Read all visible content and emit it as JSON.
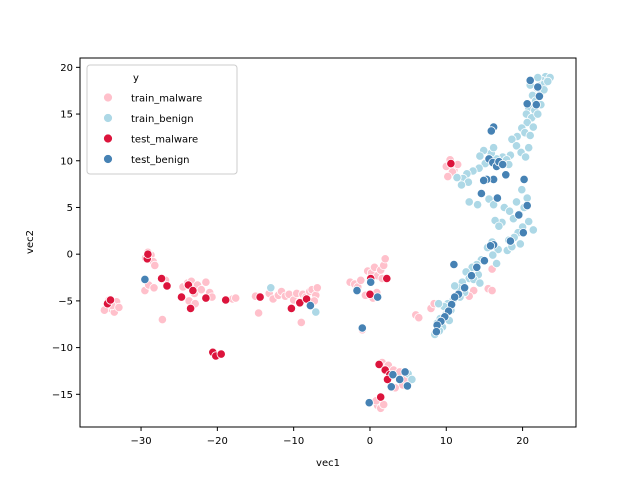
{
  "chart_data": {
    "type": "scatter",
    "title": "",
    "xlabel": "vec1",
    "ylabel": "vec2",
    "xlim": [
      -38,
      27
    ],
    "ylim": [
      -18.5,
      21
    ],
    "x_ticks": [
      -30,
      -20,
      -10,
      0,
      10,
      20
    ],
    "y_ticks": [
      -15,
      -10,
      -5,
      0,
      5,
      10,
      15,
      20
    ],
    "grid": false,
    "legend": {
      "title": "y",
      "placement": "top-left"
    },
    "series": [
      {
        "name": "train_malware",
        "color": "#ffc0cb",
        "points": [
          [
            -34.5,
            -5.3
          ],
          [
            -34.0,
            -5.8
          ],
          [
            -33.5,
            -6.2
          ],
          [
            -33.2,
            -5.1
          ],
          [
            -34.8,
            -6.0
          ],
          [
            -33.8,
            -5.5
          ],
          [
            -32.9,
            -5.7
          ],
          [
            -34.2,
            -4.9
          ],
          [
            -29.5,
            -3.9
          ],
          [
            -29.0,
            -3.3
          ],
          [
            -28.3,
            -3.6
          ],
          [
            -28.7,
            -0.1
          ],
          [
            -28.4,
            -0.8
          ],
          [
            -29.4,
            -0.4
          ],
          [
            -29.1,
            0.2
          ],
          [
            -28.2,
            -1.2
          ],
          [
            -27.2,
            -7.0
          ],
          [
            -26.8,
            -2.8
          ],
          [
            -24.5,
            -3.5
          ],
          [
            -23.9,
            -3.1
          ],
          [
            -23.4,
            -2.9
          ],
          [
            -23.0,
            -4.2
          ],
          [
            -22.6,
            -3.3
          ],
          [
            -22.1,
            -3.8
          ],
          [
            -21.5,
            -3.0
          ],
          [
            -21.0,
            -4.1
          ],
          [
            -23.7,
            -5.0
          ],
          [
            -22.9,
            -5.3
          ],
          [
            -20.7,
            -4.6
          ],
          [
            -18.0,
            -4.8
          ],
          [
            -17.6,
            -4.7
          ],
          [
            -15.0,
            -4.5
          ],
          [
            -14.6,
            -6.3
          ],
          [
            -13.2,
            -4.2
          ],
          [
            -12.7,
            -4.8
          ],
          [
            -12.0,
            -4.4
          ],
          [
            -11.6,
            -4.0
          ],
          [
            -11.1,
            -4.5
          ],
          [
            -10.6,
            -4.3
          ],
          [
            -10.0,
            -4.9
          ],
          [
            -9.6,
            -4.2
          ],
          [
            -9.2,
            -5.1
          ],
          [
            -9.0,
            -7.3
          ],
          [
            -8.8,
            -4.3
          ],
          [
            -8.4,
            -4.6
          ],
          [
            -7.9,
            -4.0
          ],
          [
            -7.6,
            -3.8
          ],
          [
            -7.1,
            -4.4
          ],
          [
            -6.9,
            -3.6
          ],
          [
            -7.3,
            -5.0
          ],
          [
            -2.6,
            -3.0
          ],
          [
            -2.0,
            -3.2
          ],
          [
            -1.6,
            -3.5
          ],
          [
            -1.2,
            -2.8
          ],
          [
            -1.0,
            -8.1
          ],
          [
            -0.6,
            -4.4
          ],
          [
            -0.3,
            -1.8
          ],
          [
            0.2,
            -2.0
          ],
          [
            0.6,
            -1.4
          ],
          [
            1.0,
            -2.3
          ],
          [
            1.4,
            -1.7
          ],
          [
            1.8,
            -1.2
          ],
          [
            2.0,
            -0.5
          ],
          [
            1.6,
            -2.6
          ],
          [
            0.4,
            -4.7
          ],
          [
            0.9,
            -4.1
          ],
          [
            1.6,
            -11.6
          ],
          [
            2.0,
            -12.5
          ],
          [
            2.4,
            -11.9
          ],
          [
            3.1,
            -12.4
          ],
          [
            3.6,
            -13.1
          ],
          [
            3.9,
            -12.6
          ],
          [
            4.3,
            -14.0
          ],
          [
            4.6,
            -13.4
          ],
          [
            3.3,
            -14.3
          ],
          [
            1.0,
            -16.2
          ],
          [
            1.4,
            -16.5
          ],
          [
            1.8,
            -16.1
          ],
          [
            0.8,
            -15.7
          ],
          [
            6.0,
            -6.5
          ],
          [
            6.4,
            -6.8
          ],
          [
            8.0,
            -5.8
          ],
          [
            8.4,
            -5.3
          ],
          [
            10.0,
            9.4
          ],
          [
            10.5,
            10.1
          ],
          [
            11.0,
            9.0
          ],
          [
            11.5,
            9.6
          ],
          [
            10.8,
            8.8
          ],
          [
            10.2,
            8.3
          ],
          [
            16.0,
            -1.6
          ],
          [
            15.5,
            -3.7
          ],
          [
            16.0,
            -3.9
          ],
          [
            13.6,
            -3.9
          ],
          [
            13.0,
            -4.5
          ]
        ]
      },
      {
        "name": "train_benign",
        "color": "#add8e6",
        "points": [
          [
            23.0,
            19.0
          ],
          [
            23.6,
            18.9
          ],
          [
            22.5,
            18.6
          ],
          [
            22.0,
            18.9
          ],
          [
            22.8,
            18.2
          ],
          [
            21.9,
            17.8
          ],
          [
            22.4,
            17.3
          ],
          [
            21.3,
            17.0
          ],
          [
            22.8,
            17.6
          ],
          [
            21.7,
            16.4
          ],
          [
            22.4,
            16.0
          ],
          [
            20.8,
            15.7
          ],
          [
            21.6,
            15.4
          ],
          [
            20.5,
            15.0
          ],
          [
            21.2,
            14.6
          ],
          [
            20.6,
            14.1
          ],
          [
            21.4,
            13.6
          ],
          [
            19.9,
            13.5
          ],
          [
            20.3,
            13.0
          ],
          [
            21.0,
            12.7
          ],
          [
            19.3,
            12.6
          ],
          [
            18.6,
            12.3
          ],
          [
            19.2,
            11.6
          ],
          [
            20.8,
            11.4
          ],
          [
            19.8,
            10.9
          ],
          [
            20.4,
            10.4
          ],
          [
            18.4,
            10.6
          ],
          [
            17.4,
            10.4
          ],
          [
            16.6,
            10.2
          ],
          [
            15.9,
            10.8
          ],
          [
            16.2,
            11.4
          ],
          [
            14.9,
            11.1
          ],
          [
            14.4,
            10.5
          ],
          [
            15.1,
            9.7
          ],
          [
            14.3,
            9.2
          ],
          [
            13.5,
            8.9
          ],
          [
            12.7,
            8.6
          ],
          [
            12.2,
            8.1
          ],
          [
            12.9,
            7.7
          ],
          [
            12.0,
            7.4
          ],
          [
            11.4,
            8.2
          ],
          [
            17.9,
            10.1
          ],
          [
            18.2,
            9.6
          ],
          [
            13.0,
            5.6
          ],
          [
            14.1,
            5.3
          ],
          [
            15.6,
            5.9
          ],
          [
            16.2,
            5.3
          ],
          [
            17.6,
            5.0
          ],
          [
            18.3,
            4.6
          ],
          [
            19.2,
            5.6
          ],
          [
            19.6,
            4.3
          ],
          [
            20.2,
            5.0
          ],
          [
            18.8,
            3.8
          ],
          [
            20.8,
            3.5
          ],
          [
            20.0,
            2.9
          ],
          [
            19.4,
            2.3
          ],
          [
            18.9,
            1.8
          ],
          [
            18.2,
            1.5
          ],
          [
            19.7,
            1.1
          ],
          [
            18.0,
            0.4
          ],
          [
            18.6,
            0.8
          ],
          [
            21.4,
            2.6
          ],
          [
            20.6,
            6.0
          ],
          [
            19.9,
            6.9
          ],
          [
            17.3,
            3.4
          ],
          [
            16.4,
            3.6
          ],
          [
            16.9,
            3.0
          ],
          [
            16.0,
            1.3
          ],
          [
            15.4,
            0.7
          ],
          [
            16.8,
            0.5
          ],
          [
            16.1,
            -0.1
          ],
          [
            14.6,
            -0.6
          ],
          [
            14.0,
            -1.1
          ],
          [
            13.4,
            -1.4
          ],
          [
            12.6,
            -1.9
          ],
          [
            14.2,
            -2.2
          ],
          [
            13.0,
            -2.6
          ],
          [
            12.1,
            -3.0
          ],
          [
            11.6,
            -3.6
          ],
          [
            11.1,
            -3.4
          ],
          [
            12.4,
            -4.1
          ],
          [
            11.8,
            -4.6
          ],
          [
            10.9,
            -4.9
          ],
          [
            10.2,
            -5.3
          ],
          [
            9.7,
            -5.6
          ],
          [
            10.6,
            -6.0
          ],
          [
            9.9,
            -6.5
          ],
          [
            9.2,
            -6.9
          ],
          [
            8.8,
            -7.4
          ],
          [
            10.4,
            -7.1
          ],
          [
            9.5,
            -7.8
          ],
          [
            8.5,
            -8.6
          ],
          [
            9.1,
            -8.2
          ],
          [
            13.6,
            -2.7
          ],
          [
            14.4,
            -3.1
          ],
          [
            16.6,
            -1.0
          ],
          [
            22.0,
            15.0
          ],
          [
            21.0,
            18.1
          ],
          [
            23.3,
            18.5
          ],
          [
            -13.0,
            -3.6
          ],
          [
            -7.1,
            -6.2
          ],
          [
            5.0,
            -12.8
          ],
          [
            5.5,
            -13.4
          ],
          [
            9.0,
            -5.3
          ]
        ]
      },
      {
        "name": "test_malware",
        "color": "#dc143c",
        "points": [
          [
            -34.4,
            -5.3
          ],
          [
            -34.0,
            -4.9
          ],
          [
            -29.2,
            -0.5
          ],
          [
            -29.1,
            0.0
          ],
          [
            -27.3,
            -2.6
          ],
          [
            -26.6,
            -3.4
          ],
          [
            -24.7,
            -4.6
          ],
          [
            -23.8,
            -3.3
          ],
          [
            -23.5,
            -5.8
          ],
          [
            -23.2,
            -3.9
          ],
          [
            -21.5,
            -4.7
          ],
          [
            -20.6,
            -10.5
          ],
          [
            -20.2,
            -10.9
          ],
          [
            -19.5,
            -10.7
          ],
          [
            -18.9,
            -4.9
          ],
          [
            -14.4,
            -4.6
          ],
          [
            -10.3,
            -5.8
          ],
          [
            -9.2,
            -5.2
          ],
          [
            -8.3,
            -4.8
          ],
          [
            0.1,
            -2.6
          ],
          [
            0.0,
            -4.3
          ],
          [
            2.2,
            -2.6
          ],
          [
            1.2,
            -11.8
          ],
          [
            2.0,
            -12.4
          ],
          [
            2.6,
            -12.9
          ],
          [
            2.3,
            -13.4
          ],
          [
            1.4,
            -15.3
          ],
          [
            10.6,
            9.7
          ]
        ]
      },
      {
        "name": "test_benign",
        "color": "#4682b4",
        "points": [
          [
            21.0,
            18.6
          ],
          [
            22.0,
            17.9
          ],
          [
            22.2,
            16.9
          ],
          [
            20.6,
            16.1
          ],
          [
            21.8,
            16.0
          ],
          [
            16.2,
            13.6
          ],
          [
            15.9,
            13.2
          ],
          [
            15.6,
            10.2
          ],
          [
            16.1,
            9.8
          ],
          [
            16.6,
            9.4
          ],
          [
            16.9,
            9.9
          ],
          [
            17.4,
            9.6
          ],
          [
            17.8,
            8.5
          ],
          [
            16.2,
            8.0
          ],
          [
            15.3,
            8.0
          ],
          [
            14.9,
            7.9
          ],
          [
            14.6,
            6.5
          ],
          [
            16.7,
            6.0
          ],
          [
            20.2,
            8.0
          ],
          [
            20.6,
            5.2
          ],
          [
            19.5,
            4.2
          ],
          [
            20.1,
            2.3
          ],
          [
            18.4,
            1.4
          ],
          [
            16.2,
            1.0
          ],
          [
            15.8,
            0.9
          ],
          [
            15.0,
            -0.7
          ],
          [
            14.0,
            -1.4
          ],
          [
            11.0,
            -1.1
          ],
          [
            13.3,
            -2.3
          ],
          [
            12.4,
            -3.6
          ],
          [
            11.6,
            -4.3
          ],
          [
            11.1,
            -4.6
          ],
          [
            10.7,
            -5.4
          ],
          [
            10.3,
            -6.1
          ],
          [
            9.8,
            -6.7
          ],
          [
            9.3,
            -7.2
          ],
          [
            8.8,
            -7.6
          ],
          [
            8.7,
            -8.3
          ],
          [
            -29.5,
            -2.7
          ],
          [
            -7.8,
            -5.5
          ],
          [
            -1.7,
            -3.9
          ],
          [
            -1.0,
            -7.9
          ],
          [
            0.1,
            -3.0
          ],
          [
            1.0,
            -4.6
          ],
          [
            3.0,
            -12.9
          ],
          [
            2.8,
            -14.2
          ],
          [
            3.9,
            -13.4
          ],
          [
            4.6,
            -12.6
          ],
          [
            -0.1,
            -15.9
          ],
          [
            4.9,
            -14.1
          ]
        ]
      }
    ]
  }
}
